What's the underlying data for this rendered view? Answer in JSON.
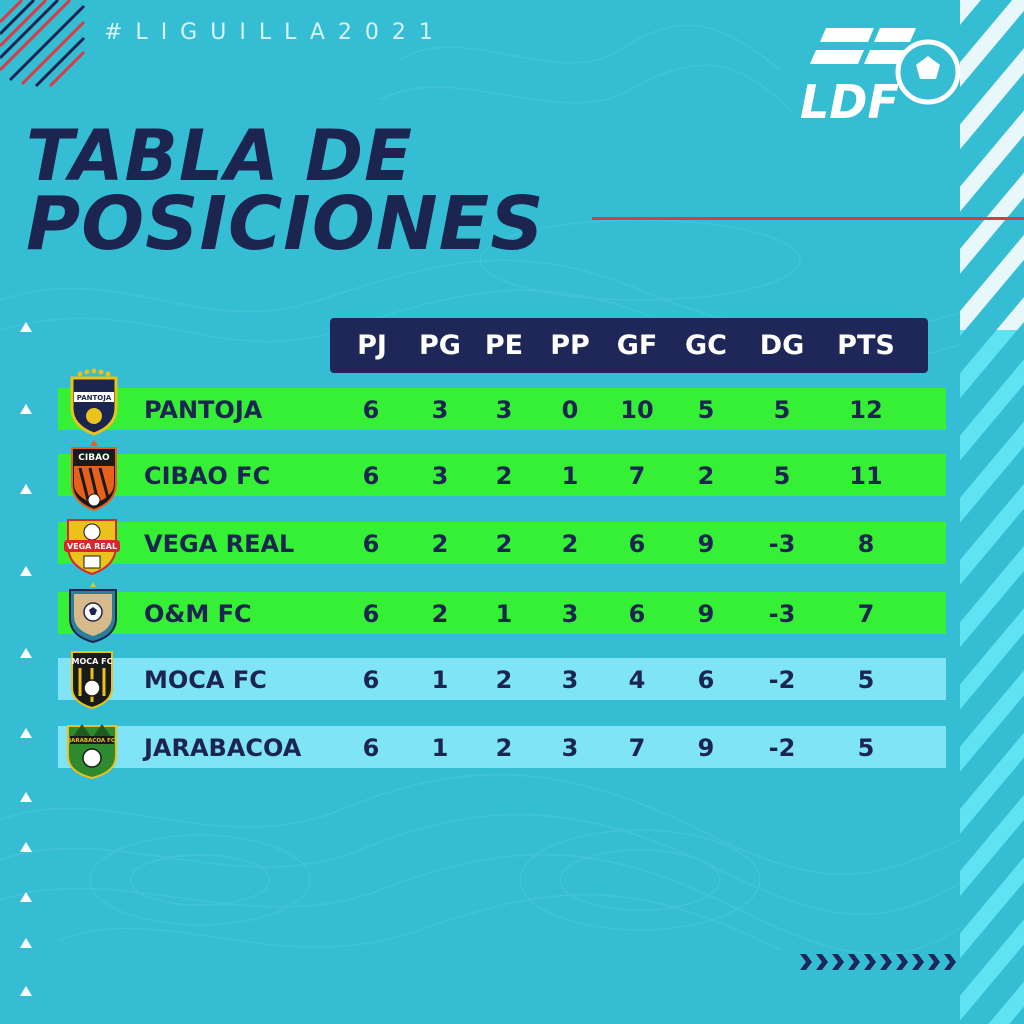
{
  "hashtag": "#LIGUILLA2021",
  "logo": {
    "text": "LDF"
  },
  "title": {
    "line1": "TABLA DE",
    "line2": "POSICIONES"
  },
  "columns": [
    "PJ",
    "PG",
    "PE",
    "PP",
    "GF",
    "GC",
    "DG",
    "PTS"
  ],
  "teams": [
    {
      "name": "PANTOJA",
      "crest_label": "PANTOJA",
      "stats": [
        "6",
        "3",
        "3",
        "0",
        "10",
        "5",
        "5",
        "12"
      ],
      "highlight": "green"
    },
    {
      "name": "CIBAO FC",
      "crest_label": "CIBAO",
      "stats": [
        "6",
        "3",
        "2",
        "1",
        "7",
        "2",
        "5",
        "11"
      ],
      "highlight": "green"
    },
    {
      "name": "VEGA REAL",
      "crest_label": "VEGA REAL",
      "stats": [
        "6",
        "2",
        "2",
        "2",
        "6",
        "9",
        "-3",
        "8"
      ],
      "highlight": "green"
    },
    {
      "name": "O&M FC",
      "crest_label": "",
      "stats": [
        "6",
        "2",
        "1",
        "3",
        "6",
        "9",
        "-3",
        "7"
      ],
      "highlight": "green"
    },
    {
      "name": "MOCA FC",
      "crest_label": "MOCA FC",
      "stats": [
        "6",
        "1",
        "2",
        "3",
        "4",
        "6",
        "-2",
        "5"
      ],
      "highlight": "light"
    },
    {
      "name": "JARABACOA",
      "crest_label": "JARABACOA FC",
      "stats": [
        "6",
        "1",
        "2",
        "3",
        "7",
        "9",
        "-2",
        "5"
      ],
      "highlight": "light"
    }
  ],
  "colors": {
    "background": "#35bdd4",
    "navy": "#1b2550",
    "header_bar": "#1f2758",
    "qualified_row": "#35f035",
    "other_row": "#7fe5f6",
    "accent_red": "#d93a43"
  }
}
